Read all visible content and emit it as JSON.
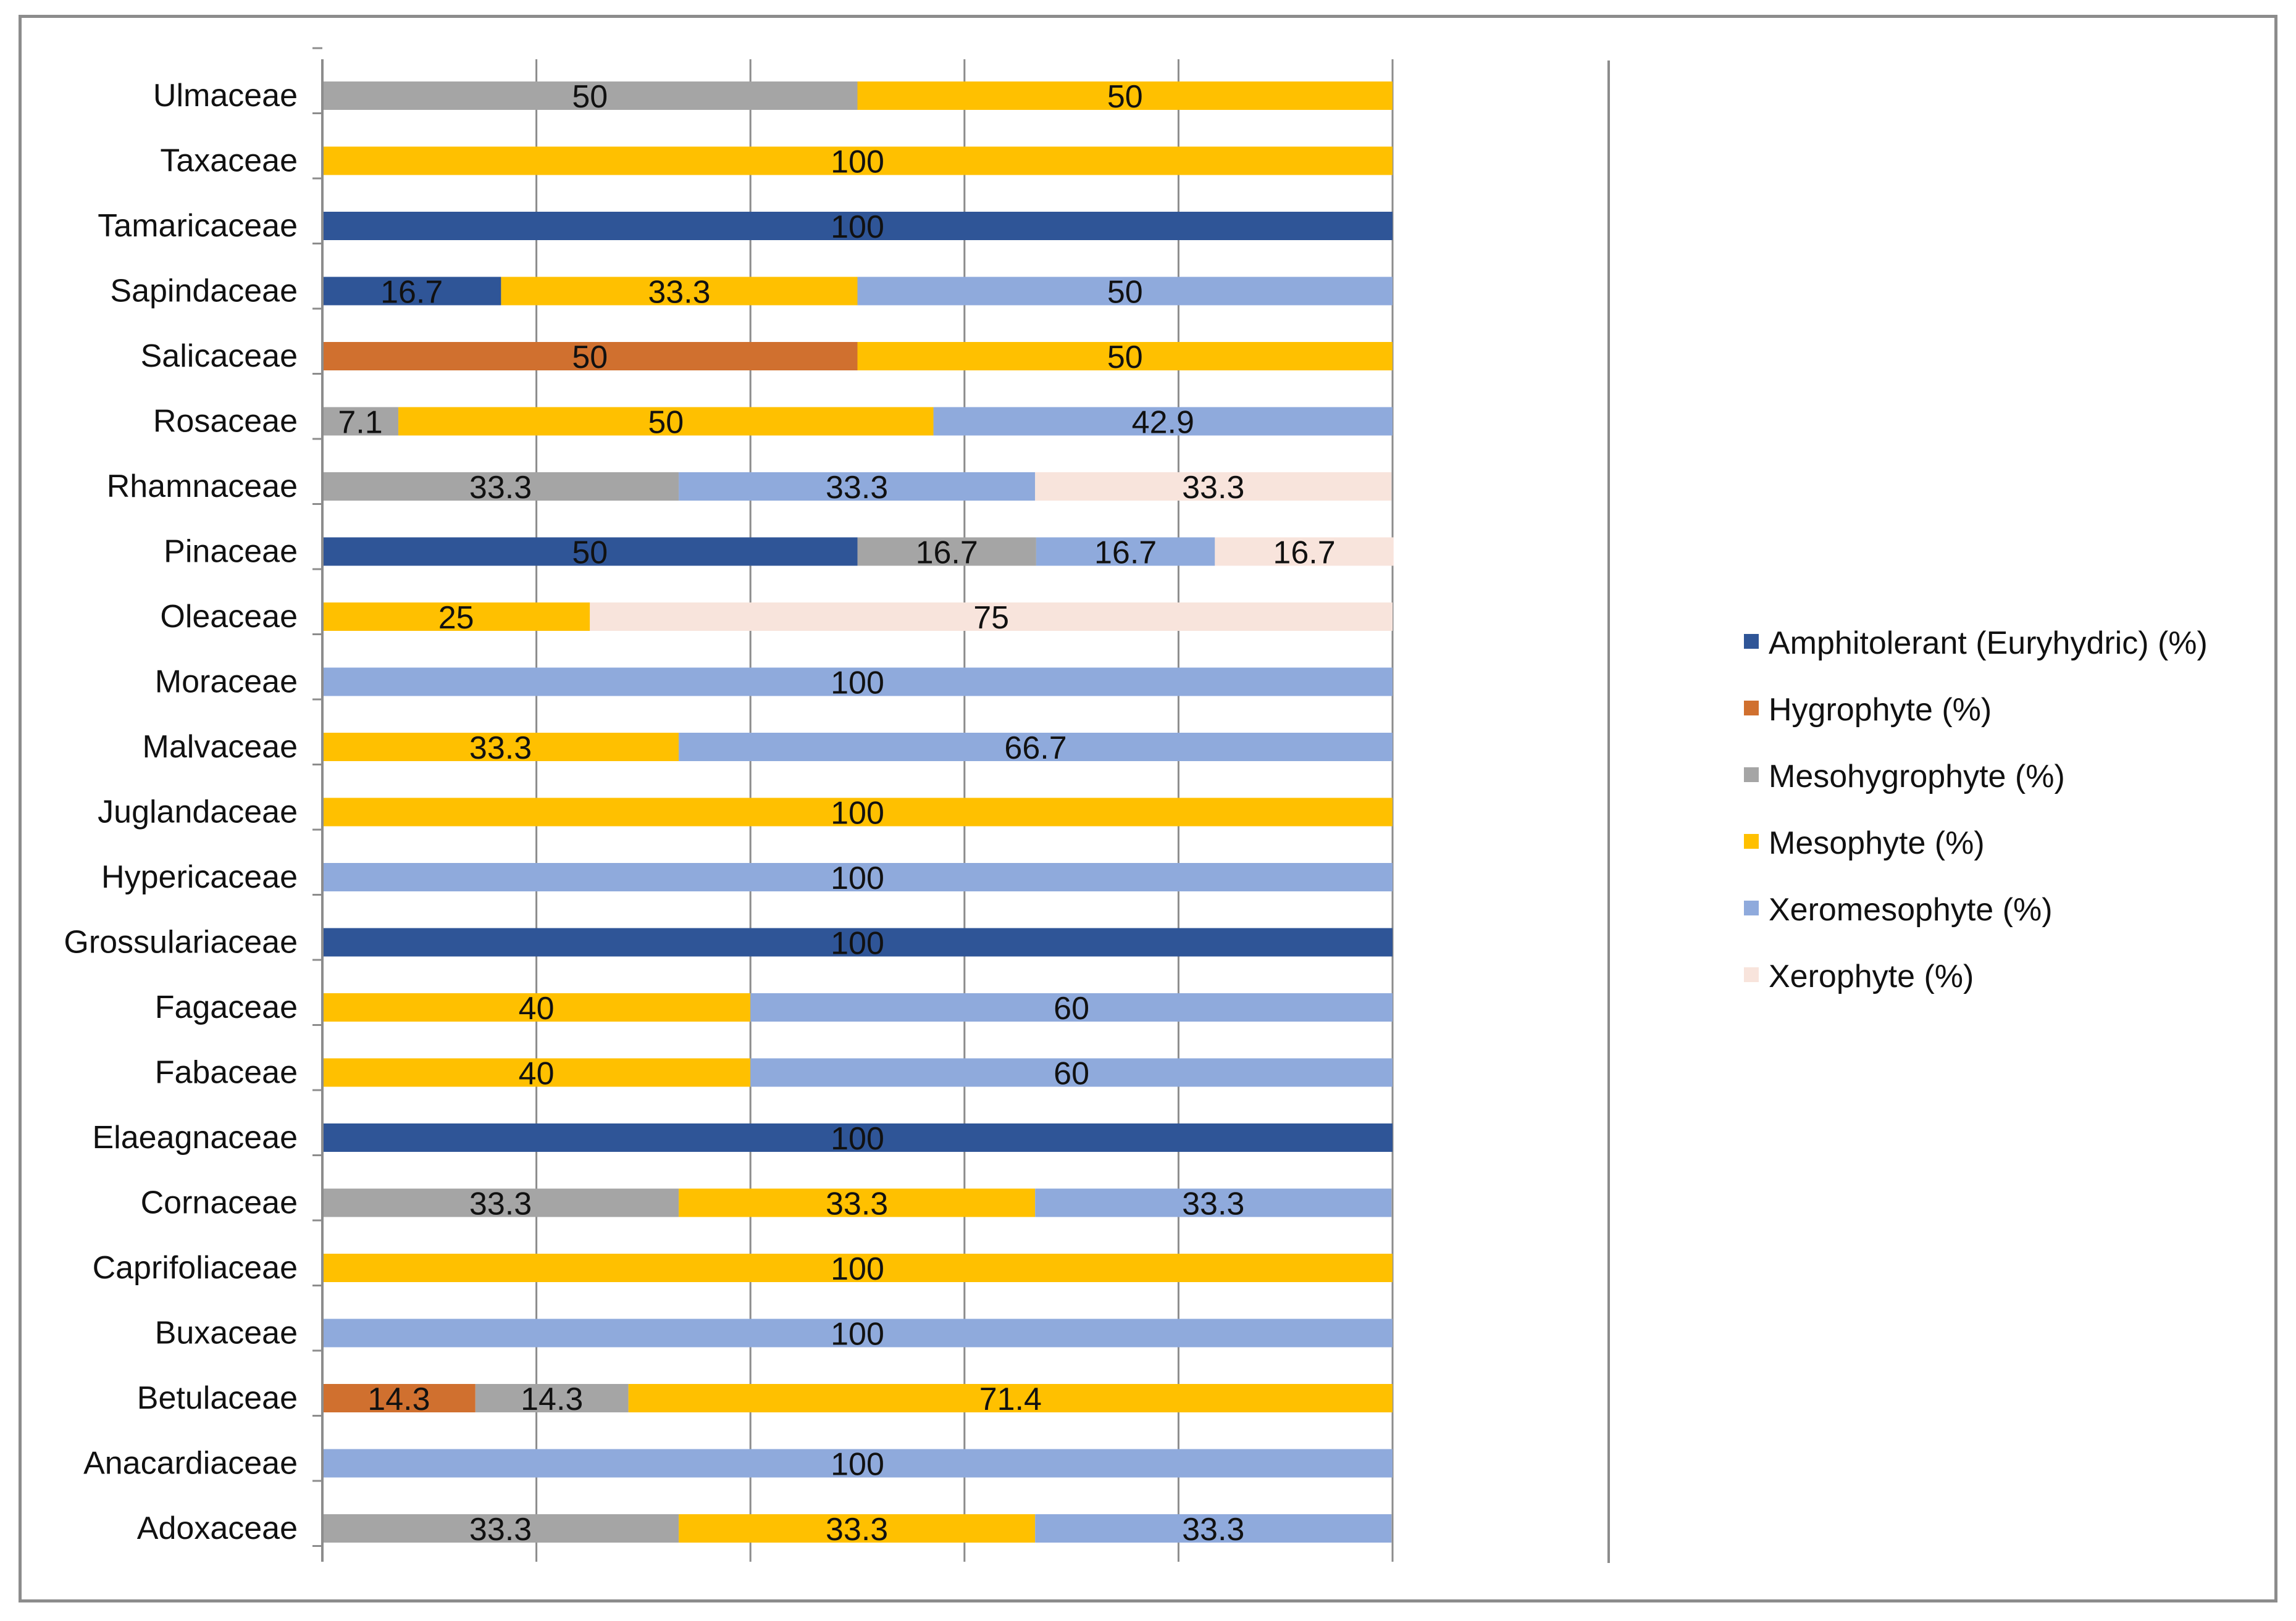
{
  "chart_data": {
    "type": "bar",
    "orientation": "horizontal",
    "stacked": true,
    "title": "",
    "xlabel": "",
    "ylabel": "",
    "xlim": [
      0,
      100
    ],
    "grid": true,
    "legend_position": "right",
    "categories": [
      "Ulmaceae",
      "Taxaceae",
      "Tamaricaceae",
      "Sapindaceae",
      "Salicaceae",
      "Rosaceae",
      "Rhamnaceae",
      "Pinaceae",
      "Oleaceae",
      "Moraceae",
      "Malvaceae",
      "Juglandaceae",
      "Hypericaceae",
      "Grossulariaceae",
      "Fagaceae",
      "Fabaceae",
      "Elaeagnaceae",
      "Cornaceae",
      "Caprifoliaceae",
      "Buxaceae",
      "Betulaceae",
      "Anacardiaceae",
      "Adoxaceae"
    ],
    "series": [
      {
        "name": "Amphitolerant (Euryhydric) (%)",
        "color": "#2f5597",
        "values": [
          0,
          0,
          100,
          16.7,
          0,
          0,
          0,
          50,
          0,
          0,
          0,
          0,
          0,
          100,
          0,
          0,
          100,
          0,
          0,
          0,
          0,
          0,
          0
        ]
      },
      {
        "name": "Hygrophyte (%)",
        "color": "#d0702f",
        "values": [
          0,
          0,
          0,
          0,
          50,
          0,
          0,
          0,
          0,
          0,
          0,
          0,
          0,
          0,
          0,
          0,
          0,
          0,
          0,
          0,
          14.3,
          0,
          0
        ]
      },
      {
        "name": "Mesohygrophyte (%)",
        "color": "#a5a5a5",
        "values": [
          50,
          0,
          0,
          0,
          0,
          7.1,
          33.3,
          16.7,
          0,
          0,
          0,
          0,
          0,
          0,
          0,
          0,
          0,
          33.3,
          0,
          0,
          14.3,
          0,
          33.3
        ]
      },
      {
        "name": "Mesophyte (%)",
        "color": "#ffc000",
        "values": [
          50,
          100,
          0,
          33.3,
          50,
          50,
          0,
          0,
          25,
          0,
          33.3,
          100,
          0,
          0,
          40,
          40,
          0,
          33.3,
          100,
          0,
          71.4,
          0,
          33.3
        ]
      },
      {
        "name": "Xeromesophyte (%)",
        "color": "#8faadc",
        "values": [
          0,
          0,
          0,
          50,
          0,
          42.9,
          33.3,
          16.7,
          0,
          100,
          66.7,
          0,
          100,
          0,
          60,
          60,
          0,
          33.3,
          0,
          100,
          0,
          100,
          33.3
        ]
      },
      {
        "name": "Xerophyte (%)",
        "color": "#f8e4dc",
        "values": [
          0,
          0,
          0,
          0,
          0,
          0,
          33.3,
          16.7,
          75,
          0,
          0,
          0,
          0,
          0,
          0,
          0,
          0,
          0,
          0,
          0,
          0,
          0,
          0
        ]
      }
    ]
  }
}
